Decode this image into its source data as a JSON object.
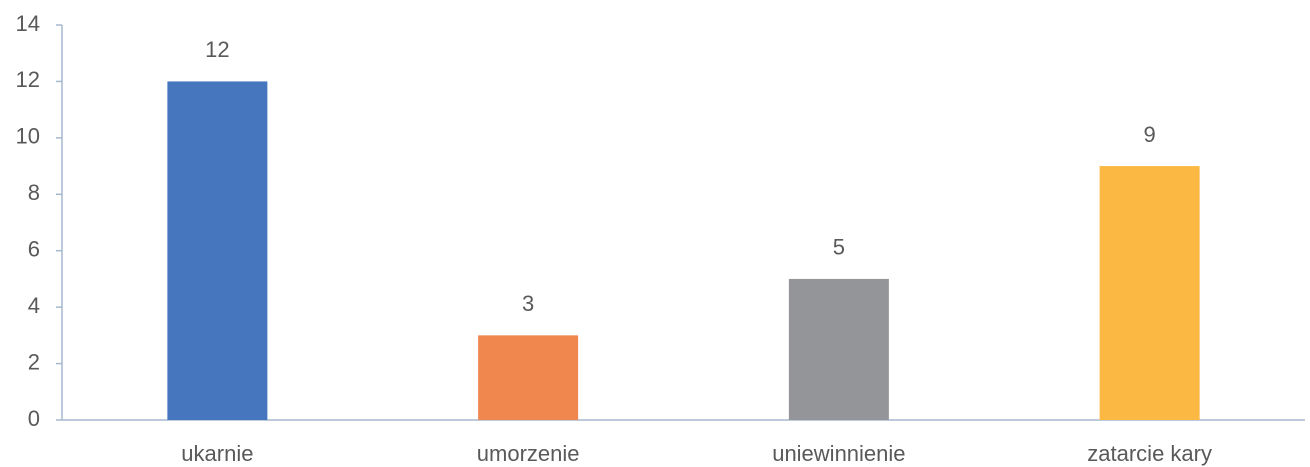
{
  "chart_data": {
    "type": "bar",
    "categories": [
      "ukarnie",
      "umorzenie",
      "uniewinnienie",
      "zatarcie kary"
    ],
    "values": [
      12,
      3,
      5,
      9
    ],
    "colors": [
      "#4677be",
      "#f0874f",
      "#949598",
      "#fbb843"
    ],
    "ylim": [
      0,
      14
    ],
    "yticks": [
      0,
      2,
      4,
      6,
      8,
      10,
      12,
      14
    ],
    "grid": false
  }
}
